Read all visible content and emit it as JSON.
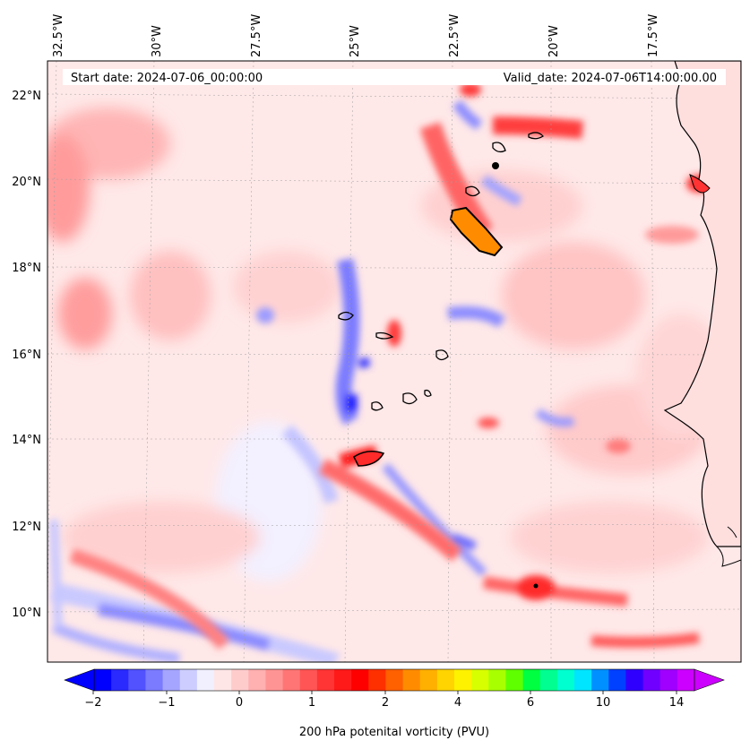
{
  "map": {
    "start_date": "Start date: 2024-07-06_00:00:00",
    "valid_date": "Valid_date: 2024-07-06T14:00:00.00",
    "longitude_labels": [
      "32.5°W",
      "30°W",
      "27.5°W",
      "25°W",
      "22.5°W",
      "20°W",
      "17.5°W"
    ],
    "latitude_labels": [
      "22°N",
      "20°N",
      "18°N",
      "16°N",
      "14°N",
      "12°N",
      "10°N"
    ]
  },
  "colorbar": {
    "label": "200 hPa potenital vorticity (PVU)",
    "tick_labels": [
      "−2",
      "−1",
      "0",
      "1",
      "2",
      "4",
      "6",
      "10",
      "14"
    ],
    "colors": [
      "#0000ff",
      "#2a2aff",
      "#5252ff",
      "#7b7bff",
      "#a5a5ff",
      "#cdcdff",
      "#f0f0ff",
      "#ffe6e6",
      "#ffcccc",
      "#ffb0b0",
      "#ff9494",
      "#ff7575",
      "#ff5555",
      "#ff3535",
      "#ff1a1a",
      "#ff0000",
      "#ff3000",
      "#ff6000",
      "#ff8c00",
      "#ffb000",
      "#ffd400",
      "#fff200",
      "#d8ff00",
      "#a8ff00",
      "#60ff00",
      "#00ff40",
      "#00ff90",
      "#00ffd0",
      "#00e5ff",
      "#0090ff",
      "#0040ff",
      "#3000ff",
      "#7000ff",
      "#a000ff",
      "#cc00ff"
    ]
  },
  "colors": {
    "negative": "#3333ff",
    "positive": "#ff2020",
    "background": "#ffecec",
    "coast": "#000000"
  }
}
